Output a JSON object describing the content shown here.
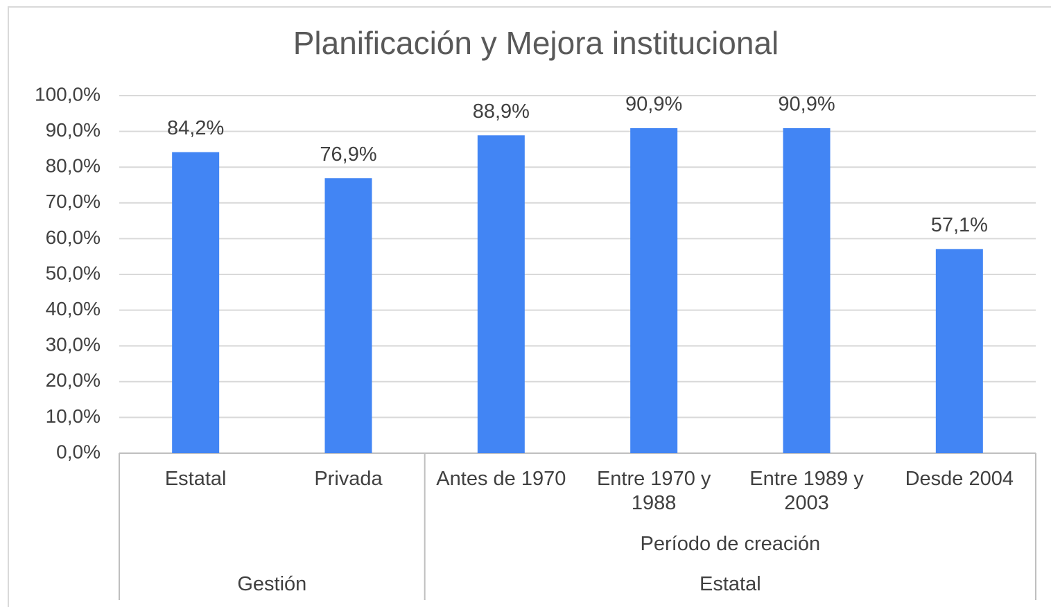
{
  "chart_data": {
    "type": "bar",
    "title": "Planificación y Mejora institucional",
    "categories": [
      "Estatal",
      "Privada",
      "Antes de 1970",
      "Entre 1970 y 1988",
      "Entre 1989 y 2003",
      "Desde 2004"
    ],
    "values": [
      84.2,
      76.9,
      88.9,
      90.9,
      90.9,
      57.1
    ],
    "value_labels": [
      "84,2%",
      "76,9%",
      "88,9%",
      "90,9%",
      "90,9%",
      "57,1%"
    ],
    "groups": [
      {
        "name": "Gestión",
        "size": 2
      },
      {
        "name": "Estatal",
        "size": 4,
        "subgroup": "Período de creación"
      }
    ],
    "color": "#4285f4",
    "ylim": [
      0,
      100
    ],
    "yticks": [
      {
        "value": 0,
        "label": "0,0%"
      },
      {
        "value": 10,
        "label": "10,0%"
      },
      {
        "value": 20,
        "label": "20,0%"
      },
      {
        "value": 30,
        "label": "30,0%"
      },
      {
        "value": 40,
        "label": "40,0%"
      },
      {
        "value": 50,
        "label": "50,0%"
      },
      {
        "value": 60,
        "label": "60,0%"
      },
      {
        "value": 70,
        "label": "70,0%"
      },
      {
        "value": 80,
        "label": "80,0%"
      },
      {
        "value": 90,
        "label": "90,0%"
      },
      {
        "value": 100,
        "label": "100,0%"
      }
    ],
    "grid": true
  }
}
